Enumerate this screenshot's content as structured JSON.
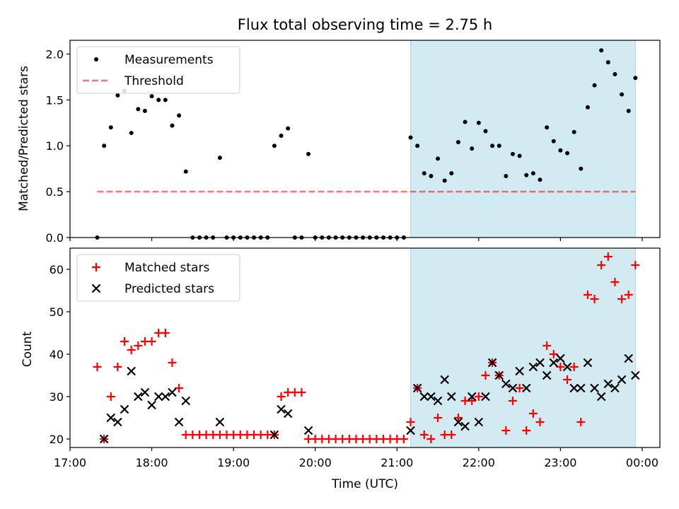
{
  "title": "Flux total observing time = 2.75 h",
  "colors": {
    "shade": "#add8e6",
    "matched": "#ff0000",
    "predicted": "#000000",
    "threshold": "#ff0000",
    "measure": "#000000"
  },
  "chart_data": [
    {
      "type": "scatter",
      "ylabel": "Matched/Predicted stars",
      "xlim": [
        "17:00",
        "00:13"
      ],
      "ylim": [
        0,
        2.15
      ],
      "yticks": [
        "0.0",
        "0.5",
        "1.0",
        "1.5",
        "2.0"
      ],
      "legend_position": "top-left",
      "shaded_span": [
        "21:10",
        "23:55"
      ],
      "series": [
        {
          "name": "Measurements",
          "marker": "dot",
          "x": [
            "17:20",
            "17:25",
            "17:30",
            "17:35",
            "17:40",
            "17:45",
            "17:50",
            "17:55",
            "18:00",
            "18:05",
            "18:10",
            "18:15",
            "18:20",
            "18:25",
            "18:30",
            "18:35",
            "18:40",
            "18:45",
            "18:50",
            "18:55",
            "19:00",
            "19:05",
            "19:10",
            "19:15",
            "19:20",
            "19:25",
            "19:30",
            "19:35",
            "19:40",
            "19:45",
            "19:50",
            "19:55",
            "20:00",
            "20:05",
            "20:10",
            "20:15",
            "20:20",
            "20:25",
            "20:30",
            "20:35",
            "20:40",
            "20:45",
            "20:50",
            "20:55",
            "21:00",
            "21:05",
            "21:10",
            "21:15",
            "21:20",
            "21:25",
            "21:30",
            "21:35",
            "21:40",
            "21:45",
            "21:50",
            "21:55",
            "22:00",
            "22:05",
            "22:10",
            "22:15",
            "22:20",
            "22:25",
            "22:30",
            "22:35",
            "22:40",
            "22:45",
            "22:50",
            "22:55",
            "23:00",
            "23:05",
            "23:10",
            "23:15",
            "23:20",
            "23:25",
            "23:30",
            "23:35",
            "23:40",
            "23:45",
            "23:50",
            "23:55"
          ],
          "y": [
            0.0,
            1.0,
            1.2,
            1.55,
            1.6,
            1.14,
            1.4,
            1.38,
            1.54,
            1.5,
            1.5,
            1.22,
            1.33,
            0.72,
            0.0,
            0.0,
            0.0,
            0.0,
            0.87,
            0.0,
            0.0,
            0.0,
            0.0,
            0.0,
            0.0,
            0.0,
            1.0,
            1.11,
            1.19,
            0.0,
            0.0,
            0.91,
            0.0,
            0.0,
            0.0,
            0.0,
            0.0,
            0.0,
            0.0,
            0.0,
            0.0,
            0.0,
            0.0,
            0.0,
            0.0,
            0.0,
            1.09,
            1.0,
            0.7,
            0.67,
            0.86,
            0.62,
            0.7,
            1.04,
            1.26,
            0.97,
            1.25,
            1.16,
            1.0,
            1.0,
            0.67,
            0.91,
            0.89,
            0.68,
            0.7,
            0.63,
            1.2,
            1.05,
            0.95,
            0.92,
            1.15,
            0.75,
            1.42,
            1.66,
            2.04,
            1.91,
            1.78,
            1.56,
            1.38,
            1.74
          ]
        },
        {
          "name": "Threshold",
          "marker": "dashed",
          "x": [
            "17:20",
            "23:55"
          ],
          "y": [
            0.5,
            0.5
          ]
        }
      ]
    },
    {
      "type": "scatter",
      "xlabel": "Time (UTC)",
      "ylabel": "Count",
      "xlim": [
        "17:00",
        "00:13"
      ],
      "ylim": [
        18,
        65
      ],
      "yticks": [
        "20",
        "30",
        "40",
        "50",
        "60"
      ],
      "xticks": [
        "17:00",
        "18:00",
        "19:00",
        "20:00",
        "21:00",
        "22:00",
        "23:00",
        "00:00"
      ],
      "legend_position": "top-left",
      "shaded_span": [
        "21:10",
        "23:55"
      ],
      "series": [
        {
          "name": "Matched stars",
          "marker": "plus",
          "x": [
            "17:20",
            "17:25",
            "17:30",
            "17:35",
            "17:40",
            "17:45",
            "17:50",
            "17:55",
            "18:00",
            "18:05",
            "18:10",
            "18:15",
            "18:20",
            "18:25",
            "18:30",
            "18:35",
            "18:40",
            "18:45",
            "18:50",
            "18:55",
            "19:00",
            "19:05",
            "19:10",
            "19:15",
            "19:20",
            "19:25",
            "19:30",
            "19:35",
            "19:40",
            "19:45",
            "19:50",
            "19:55",
            "20:00",
            "20:05",
            "20:10",
            "20:15",
            "20:20",
            "20:25",
            "20:30",
            "20:35",
            "20:40",
            "20:45",
            "20:50",
            "20:55",
            "21:00",
            "21:05",
            "21:10",
            "21:15",
            "21:20",
            "21:25",
            "21:30",
            "21:35",
            "21:40",
            "21:45",
            "21:50",
            "21:55",
            "22:00",
            "22:05",
            "22:10",
            "22:15",
            "22:20",
            "22:25",
            "22:30",
            "22:35",
            "22:40",
            "22:45",
            "22:50",
            "22:55",
            "23:00",
            "23:05",
            "23:10",
            "23:15",
            "23:20",
            "23:25",
            "23:30",
            "23:35",
            "23:40",
            "23:45",
            "23:50",
            "23:55"
          ],
          "y": [
            37,
            20,
            30,
            37,
            43,
            41,
            42,
            43,
            43,
            45,
            45,
            38,
            32,
            21,
            21,
            21,
            21,
            21,
            21,
            21,
            21,
            21,
            21,
            21,
            21,
            21,
            21,
            30,
            31,
            31,
            31,
            20,
            20,
            20,
            20,
            20,
            20,
            20,
            20,
            20,
            20,
            20,
            20,
            20,
            20,
            20,
            24,
            32,
            21,
            20,
            25,
            21,
            21,
            25,
            29,
            29,
            30,
            35,
            38,
            35,
            22,
            29,
            32,
            22,
            26,
            24,
            42,
            40,
            37,
            34,
            37,
            24,
            54,
            53,
            61,
            63,
            57,
            53,
            54,
            61
          ]
        },
        {
          "name": "Predicted stars",
          "marker": "x",
          "x": [
            "17:25",
            "17:30",
            "17:35",
            "17:40",
            "17:45",
            "17:50",
            "17:55",
            "18:00",
            "18:05",
            "18:10",
            "18:15",
            "18:20",
            "18:25",
            "18:50",
            "19:30",
            "19:35",
            "19:40",
            "19:55",
            "21:10",
            "21:15",
            "21:20",
            "21:25",
            "21:30",
            "21:35",
            "21:40",
            "21:45",
            "21:50",
            "21:55",
            "22:00",
            "22:05",
            "22:10",
            "22:15",
            "22:20",
            "22:25",
            "22:30",
            "22:35",
            "22:40",
            "22:45",
            "22:50",
            "22:55",
            "23:00",
            "23:05",
            "23:10",
            "23:15",
            "23:20",
            "23:25",
            "23:30",
            "23:35",
            "23:40",
            "23:45",
            "23:50",
            "23:55"
          ],
          "y": [
            20,
            25,
            24,
            27,
            36,
            30,
            31,
            28,
            30,
            30,
            31,
            24,
            29,
            24,
            21,
            27,
            26,
            22,
            22,
            32,
            30,
            30,
            29,
            34,
            30,
            24,
            23,
            30,
            24,
            30,
            38,
            35,
            33,
            32,
            36,
            32,
            37,
            38,
            35,
            38,
            39,
            37,
            32,
            32,
            38,
            32,
            30,
            33,
            32,
            34,
            39,
            35
          ]
        }
      ]
    }
  ]
}
